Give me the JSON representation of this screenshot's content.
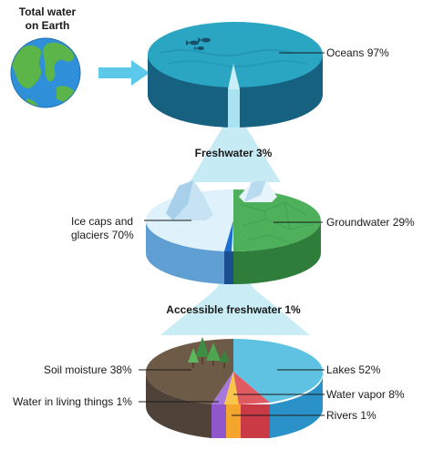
{
  "title": {
    "line1": "Total water",
    "line2": "on Earth"
  },
  "levels": {
    "oceans": "Oceans 97%",
    "freshwater": "Freshwater 3%",
    "ice_caps": {
      "line1": "Ice caps and",
      "line2": "glaciers 70%"
    },
    "groundwater": "Groundwater 29%",
    "accessible": "Accessible freshwater 1%",
    "soil_moisture": "Soil moisture 38%",
    "lakes": "Lakes 52%",
    "water_vapor": "Water vapor 8%",
    "living_things": "Water in living things 1%",
    "rivers": "Rivers 1%"
  },
  "colors": {
    "ocean_top": "#2aa6c3",
    "ocean_side": "#15617f",
    "ice_top": "#dff2fb",
    "ice_side": "#5f9fd3",
    "ground_top": "#4fb05c",
    "ground_side": "#2f7d3b",
    "beam": "#bde8f3",
    "soil_top": "#6d5a47",
    "soil_side": "#4f4238",
    "lake_top": "#5fc2e2",
    "lake_side": "#2a92c8",
    "vapor": "#f4a52b",
    "living": "#8f57c9",
    "rivers": "#c93a44",
    "arrow": "#5cc8ea"
  },
  "icons": [
    "earth-globe-icon",
    "arrow-right-icon",
    "fish-icon",
    "tree-icon"
  ]
}
